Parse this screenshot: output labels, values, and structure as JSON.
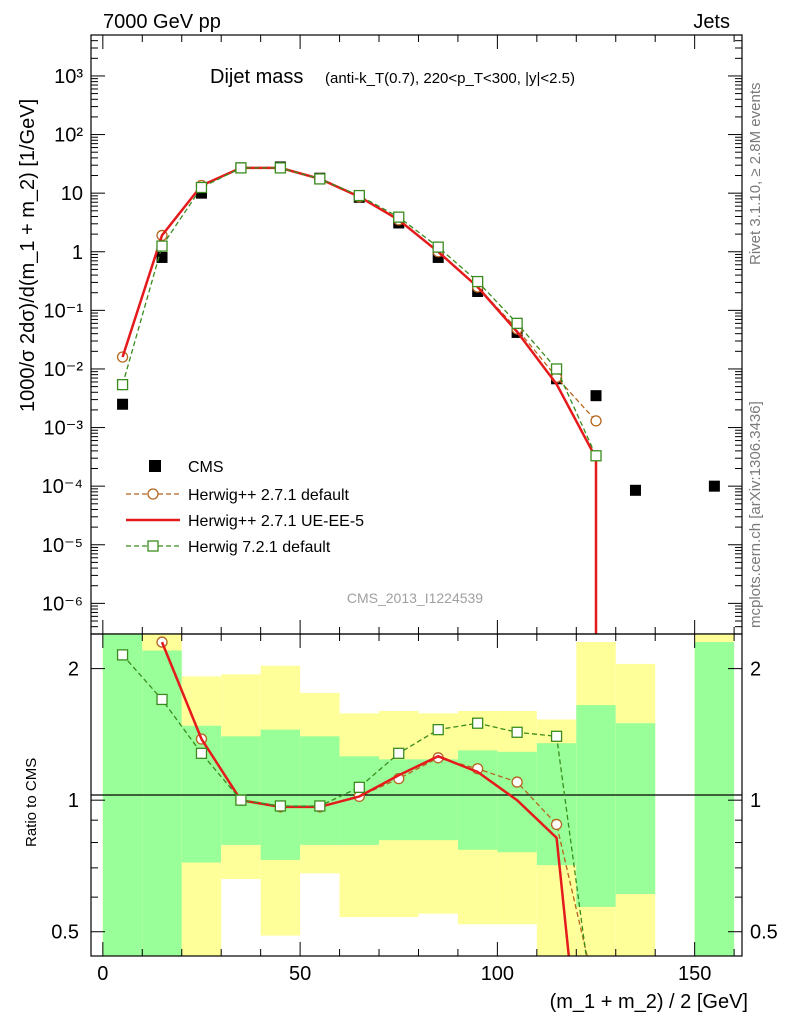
{
  "header": {
    "left": "7000 GeV pp",
    "right": "Jets"
  },
  "side_texts": {
    "rivet": "Rivet 3.1.10, ≥ 2.8M events",
    "mcplots": "mcplots.cern.ch [arXiv:1306.3436]"
  },
  "watermark": "CMS_2013_I1224539",
  "chart_data": [
    {
      "type": "line",
      "title_main": "Dijet mass",
      "title_sub": "(anti-k_T(0.7), 220<p_T<300, |y|<2.5)",
      "ylabel": "1000/σ 2dσ)/d(m_1 + m_2) [1/GeV]",
      "xlabel": "",
      "yscale": "log",
      "ylim": [
        3e-07,
        5000
      ],
      "xlim": [
        -3,
        162
      ],
      "y_tick_labels": [
        "10⁻⁶",
        "10⁻⁵",
        "10⁻⁴",
        "10⁻³",
        "10⁻²",
        "10⁻¹",
        "1",
        "10",
        "10²",
        "10³"
      ],
      "legend_position": "lower-left",
      "series": [
        {
          "name": "CMS",
          "style": "data",
          "color": "#000000",
          "x": [
            5,
            15,
            25,
            35,
            45,
            55,
            65,
            75,
            85,
            95,
            105,
            115,
            125,
            135,
            155
          ],
          "y": [
            0.0025,
            0.8,
            10,
            27,
            28,
            18,
            8.5,
            3.1,
            0.8,
            0.21,
            0.042,
            0.0068,
            0.0035,
            8.5e-05,
            0.0001
          ]
        },
        {
          "name": "Herwig++ 2.7.1 default",
          "style": "circle-dashed",
          "color": "#b5651d",
          "x": [
            5,
            15,
            25,
            35,
            45,
            55,
            65,
            75,
            85,
            95,
            105,
            115,
            125
          ],
          "y": [
            0.016,
            1.9,
            13.5,
            27,
            27,
            17.6,
            8.7,
            3.5,
            1.0,
            0.25,
            0.048,
            0.0072,
            0.0013
          ]
        },
        {
          "name": "Herwig++ 2.7.1 UE-EE-5",
          "style": "solid",
          "color": "#e41a1c",
          "x": [
            5,
            15,
            25,
            35,
            45,
            55,
            65,
            75,
            85,
            95,
            105,
            115,
            125
          ],
          "y": [
            0.016,
            1.9,
            13.5,
            27,
            27,
            17.6,
            8.7,
            3.5,
            1.0,
            0.25,
            0.043,
            0.0055,
            0.0003
          ]
        },
        {
          "name": "Herwig 7.2.1 default",
          "style": "square-dashed",
          "color": "#3a8c1e",
          "x": [
            5,
            15,
            25,
            35,
            45,
            55,
            65,
            75,
            85,
            95,
            105,
            115,
            125
          ],
          "y": [
            0.0054,
            1.25,
            12.5,
            27,
            27,
            17.5,
            9.1,
            3.9,
            1.2,
            0.31,
            0.06,
            0.01,
            0.00033
          ]
        }
      ]
    },
    {
      "type": "line",
      "title": "",
      "ylabel": "Ratio to CMS",
      "xlabel": "(m_1 + m_2) / 2 [GeV]",
      "yscale": "log",
      "ylim": [
        0.44,
        2.4
      ],
      "xlim": [
        -3,
        162
      ],
      "x_tick_labels": [
        "0",
        "50",
        "100",
        "150"
      ],
      "y_tick_labels": [
        "0.5",
        "1",
        "2"
      ],
      "bands": [
        {
          "x0": 0,
          "x1": 10,
          "inner": [
            0.3,
            2.4
          ],
          "outer": [
            0.3,
            2.4
          ]
        },
        {
          "x0": 10,
          "x1": 20,
          "inner": [
            0.3,
            2.2
          ],
          "outer": [
            0.3,
            2.4
          ]
        },
        {
          "x0": 20,
          "x1": 30,
          "inner": [
            0.72,
            1.48
          ],
          "outer": [
            0.3,
            1.92
          ]
        },
        {
          "x0": 30,
          "x1": 40,
          "inner": [
            0.79,
            1.4
          ],
          "outer": [
            0.66,
            1.94
          ]
        },
        {
          "x0": 40,
          "x1": 50,
          "inner": [
            0.73,
            1.45
          ],
          "outer": [
            0.49,
            2.03
          ]
        },
        {
          "x0": 50,
          "x1": 60,
          "inner": [
            0.79,
            1.4
          ],
          "outer": [
            0.68,
            1.76
          ]
        },
        {
          "x0": 60,
          "x1": 70,
          "inner": [
            0.79,
            1.26
          ],
          "outer": [
            0.54,
            1.58
          ]
        },
        {
          "x0": 70,
          "x1": 80,
          "inner": [
            0.81,
            1.24
          ],
          "outer": [
            0.54,
            1.6
          ]
        },
        {
          "x0": 80,
          "x1": 90,
          "inner": [
            0.81,
            1.24
          ],
          "outer": [
            0.55,
            1.58
          ]
        },
        {
          "x0": 90,
          "x1": 100,
          "inner": [
            0.77,
            1.3
          ],
          "outer": [
            0.52,
            1.6
          ]
        },
        {
          "x0": 100,
          "x1": 110,
          "inner": [
            0.76,
            1.29
          ],
          "outer": [
            0.52,
            1.6
          ]
        },
        {
          "x0": 110,
          "x1": 120,
          "inner": [
            0.71,
            1.35
          ],
          "outer": [
            0.41,
            1.53
          ]
        },
        {
          "x0": 120,
          "x1": 130,
          "inner": [
            0.57,
            1.65
          ],
          "outer": [
            0.41,
            2.3
          ]
        },
        {
          "x0": 130,
          "x1": 140,
          "inner": [
            0.61,
            1.5
          ],
          "outer": [
            0.41,
            2.05
          ]
        },
        {
          "x0": 150,
          "x1": 160,
          "inner": [
            0.3,
            2.3
          ],
          "outer": [
            0.3,
            2.4
          ]
        }
      ],
      "series": [
        {
          "name": "Herwig++ 2.7.1 default",
          "style": "circle-dashed",
          "color": "#b5651d",
          "x": [
            15,
            25,
            35,
            45,
            55,
            65,
            75,
            85,
            95,
            105,
            115,
            125
          ],
          "y": [
            2.3,
            1.38,
            1.0,
            0.965,
            0.965,
            1.02,
            1.12,
            1.25,
            1.18,
            1.1,
            0.88,
            0.36
          ]
        },
        {
          "name": "Herwig++ 2.7.1 UE-EE-5",
          "style": "solid",
          "color": "#e41a1c",
          "x": [
            15,
            25,
            35,
            45,
            55,
            65,
            75,
            85,
            95,
            105,
            115,
            120
          ],
          "y": [
            2.3,
            1.38,
            1.0,
            0.965,
            0.965,
            1.02,
            1.14,
            1.26,
            1.16,
            1.0,
            0.82,
            0.3
          ]
        },
        {
          "name": "Herwig 7.2.1 default",
          "style": "square-dashed",
          "color": "#3a8c1e",
          "x": [
            5,
            15,
            25,
            35,
            45,
            55,
            65,
            75,
            85,
            95,
            105,
            115,
            125
          ],
          "y": [
            2.15,
            1.7,
            1.28,
            1.0,
            0.97,
            0.97,
            1.07,
            1.28,
            1.45,
            1.5,
            1.43,
            1.4,
            0.3
          ]
        }
      ]
    }
  ]
}
